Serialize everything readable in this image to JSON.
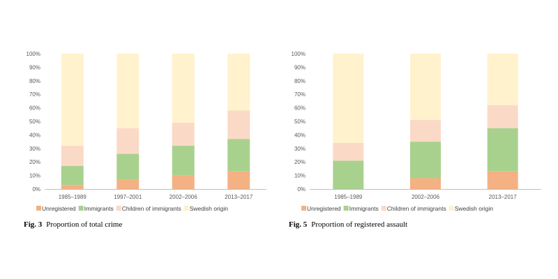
{
  "colors": {
    "Unregistered": "#f4b183",
    "Immigrants": "#a9d18e",
    "Children of immigrants": "#fbd9c7",
    "Swedish origin": "#fff2cc",
    "axis": "#bfbfbf",
    "text": "#595959"
  },
  "chart_data": [
    {
      "type": "bar",
      "stacked": true,
      "categories": [
        "1985–1989",
        "1997–2001",
        "2002–2006",
        "2013–2017"
      ],
      "series": [
        {
          "name": "Unregistered",
          "values": [
            3,
            7,
            10,
            13
          ]
        },
        {
          "name": "Immigrants",
          "values": [
            14,
            19,
            22,
            24
          ]
        },
        {
          "name": "Children of immigrants",
          "values": [
            15,
            19,
            17,
            21
          ]
        },
        {
          "name": "Swedish origin",
          "values": [
            68,
            55,
            51,
            42
          ]
        }
      ],
      "yticks": [
        "0%",
        "10%",
        "20%",
        "30%",
        "40%",
        "50%",
        "60%",
        "70%",
        "80%",
        "90%",
        "100%"
      ],
      "ylim": [
        0,
        100
      ],
      "grid": false,
      "legend": "bottom",
      "caption_label": "Fig. 3",
      "caption_text": "Proportion of total crime"
    },
    {
      "type": "bar",
      "stacked": true,
      "categories": [
        "1985–1989",
        "2002–2006",
        "2013–2017"
      ],
      "series": [
        {
          "name": "Unregistered",
          "values": [
            0,
            8,
            13
          ]
        },
        {
          "name": "Immigrants",
          "values": [
            21,
            27,
            32
          ]
        },
        {
          "name": "Children of immigrants",
          "values": [
            13,
            16,
            17
          ]
        },
        {
          "name": "Swedish origin",
          "values": [
            66,
            49,
            38
          ]
        }
      ],
      "yticks": [
        "0%",
        "10%",
        "20%",
        "30%",
        "40%",
        "50%",
        "60%",
        "70%",
        "80%",
        "90%",
        "100%"
      ],
      "ylim": [
        0,
        100
      ],
      "grid": false,
      "legend": "bottom",
      "caption_label": "Fig. 5",
      "caption_text": "Proportion of registered assault"
    }
  ]
}
